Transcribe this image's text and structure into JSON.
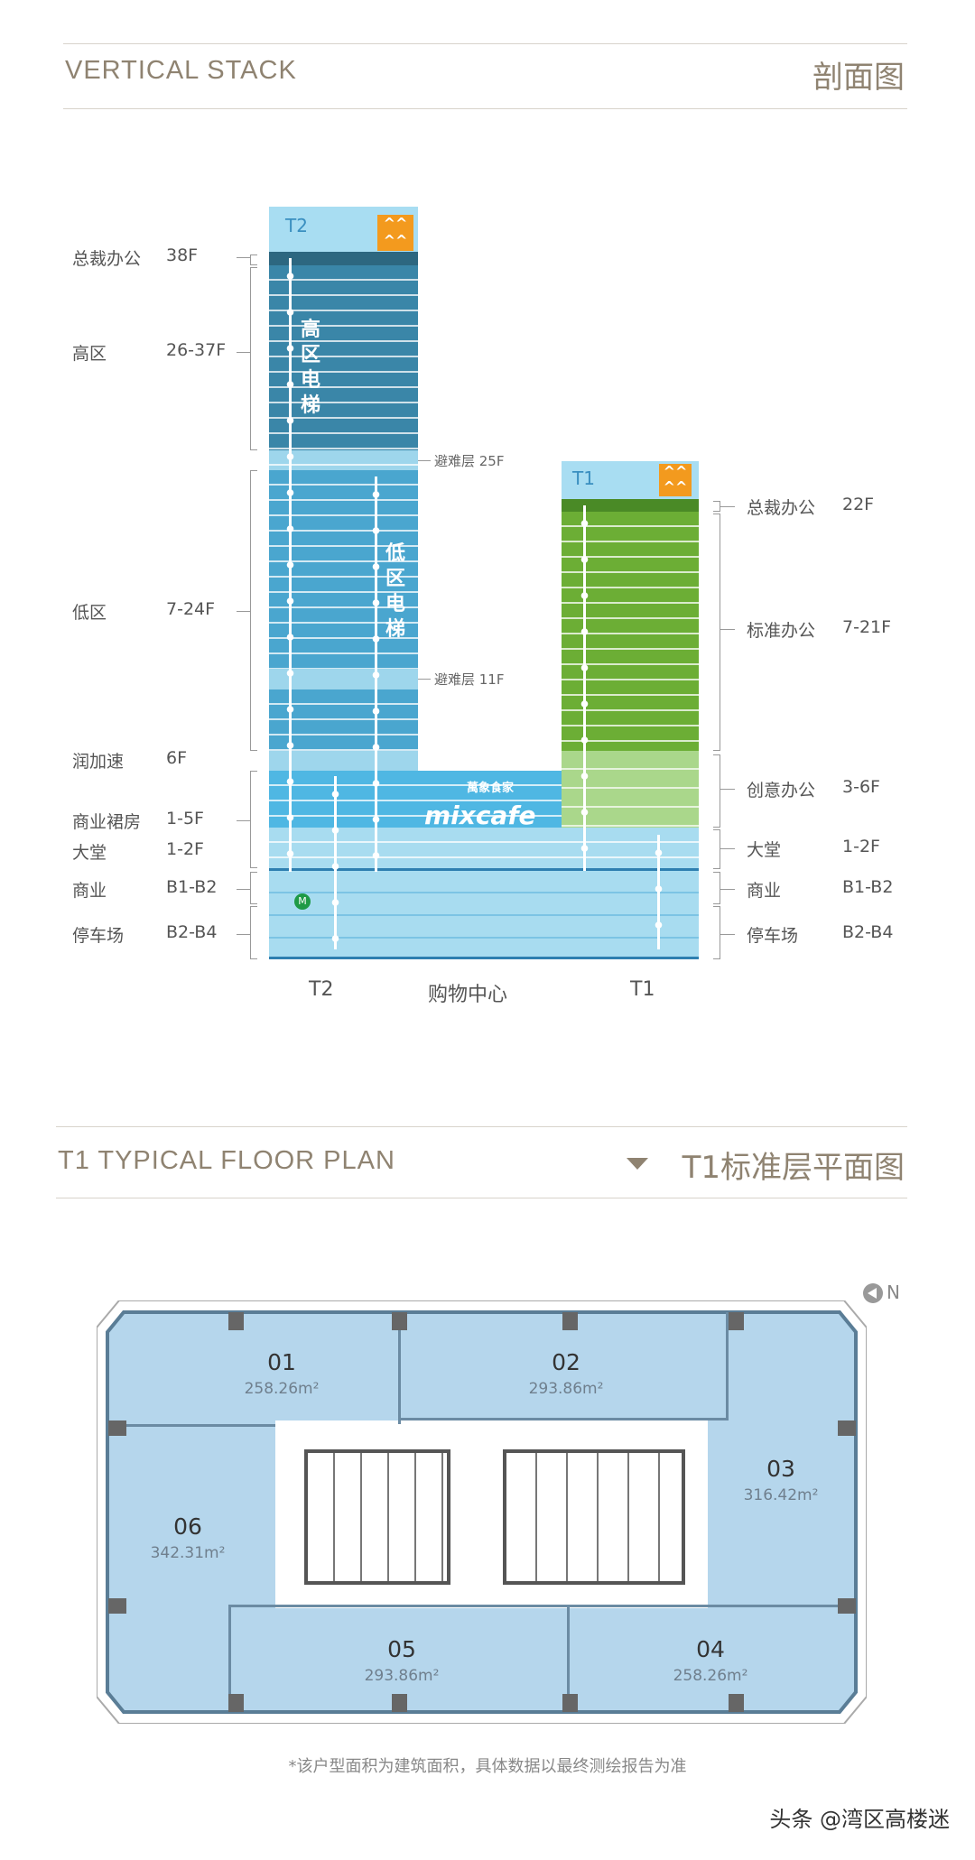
{
  "section1": {
    "title_en": "VERTICAL STACK",
    "title_cn": "剖面图"
  },
  "stack": {
    "t2_tag": "T2",
    "t1_tag": "T1",
    "logo_icon": "orange-mountain-logo",
    "high_elevator": [
      "高",
      "区",
      "电",
      "梯"
    ],
    "low_elevator": [
      "低",
      "区",
      "电",
      "梯"
    ],
    "refuge_25": "避难层 25F",
    "refuge_11": "避难层 11F",
    "mall_brand": "mixcafe",
    "mall_brand_cn": "萬象食家",
    "left_labels": [
      {
        "name": "总裁办公",
        "floors": "38F"
      },
      {
        "name": "高区",
        "floors": "26-37F"
      },
      {
        "name": "低区",
        "floors": "7-24F"
      },
      {
        "name": "润加速",
        "floors": "6F"
      },
      {
        "name": "商业裙房",
        "floors": "1-5F"
      },
      {
        "name": "大堂",
        "floors": "1-2F"
      },
      {
        "name": "商业",
        "floors": "B1-B2"
      },
      {
        "name": "停车场",
        "floors": "B2-B4"
      }
    ],
    "right_labels": [
      {
        "name": "总裁办公",
        "floors": "22F"
      },
      {
        "name": "标准办公",
        "floors": "7-21F"
      },
      {
        "name": "创意办公",
        "floors": "3-6F"
      },
      {
        "name": "大堂",
        "floors": "1-2F"
      },
      {
        "name": "商业",
        "floors": "B1-B2"
      },
      {
        "name": "停车场",
        "floors": "B2-B4"
      }
    ],
    "bottom_labels": [
      "T2",
      "购物中心",
      "T1"
    ],
    "colors": {
      "t2_high": "#3a86a8",
      "t2_low": "#4aa6cf",
      "refuge": "#9ed6ec",
      "podium": "#4fb7e3",
      "basement": "#a8dcf0",
      "t1_green": "#6cae35",
      "t1_creative": "#aad78b",
      "logo": "#f39a1e"
    }
  },
  "section2": {
    "title_en": "T1 TYPICAL FLOOR PLAN",
    "title_cn": "T1标准层平面图",
    "marker_icon": "triangle-down-icon"
  },
  "plan": {
    "north": "N",
    "rooms": [
      {
        "id": "01",
        "area": "258.26m²"
      },
      {
        "id": "02",
        "area": "293.86m²"
      },
      {
        "id": "03",
        "area": "316.42m²"
      },
      {
        "id": "04",
        "area": "258.26m²"
      },
      {
        "id": "05",
        "area": "293.86m²"
      },
      {
        "id": "06",
        "area": "342.31m²"
      }
    ],
    "footnote": "*该户型面积为建筑面积，具体数据以最终测绘报告为准"
  },
  "watermark": "头条 @湾区高楼迷"
}
